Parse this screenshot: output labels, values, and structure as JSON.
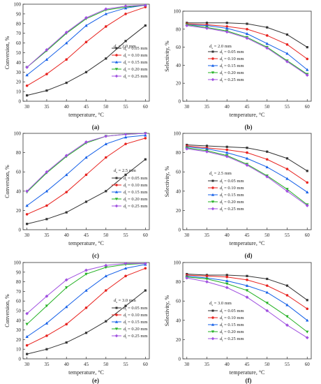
{
  "figure": {
    "panels": [
      {
        "id": "a",
        "label": "(a)",
        "d_label": "dₛ = 2.0 mm",
        "metric": "conversion"
      },
      {
        "id": "b",
        "label": "(b)",
        "d_label": "dₛ = 2.0 mm",
        "metric": "selectivity"
      },
      {
        "id": "c",
        "label": "(c)",
        "d_label": "dₛ = 2.5 mm",
        "metric": "conversion"
      },
      {
        "id": "d",
        "label": "(d)",
        "d_label": "dₛ = 2.5 mm",
        "metric": "selectivity"
      },
      {
        "id": "e",
        "label": "(e)",
        "d_label": "dₛ = 3.0 mm",
        "metric": "conversion"
      },
      {
        "id": "f",
        "label": "(f)",
        "d_label": "dₛ = 3.0 mm",
        "metric": "selectivity"
      }
    ]
  },
  "chart_data": [
    {
      "id": "a",
      "type": "line",
      "panel_label": "(a)",
      "d_label": "dₛ = 2.0 mm",
      "xlabel": "temperature, °C",
      "ylabel": "Conversion, %",
      "x": [
        30,
        35,
        40,
        45,
        50,
        55,
        60
      ],
      "xlim": [
        29,
        61
      ],
      "ylim": [
        0,
        100
      ],
      "yticks": [
        0,
        10,
        20,
        30,
        40,
        50,
        60,
        70,
        80,
        90,
        100
      ],
      "legend_position": "center-right",
      "grid": false,
      "series": [
        {
          "name": "dₗ = 0.05 mm",
          "color": "#333333",
          "marker": "square",
          "values": [
            6,
            11,
            19,
            30,
            44,
            62,
            78
          ]
        },
        {
          "name": "dₗ = 0.10 mm",
          "color": "#e8231f",
          "marker": "circle",
          "values": [
            16,
            28,
            43,
            61,
            77,
            90,
            97
          ]
        },
        {
          "name": "dₗ = 0.15 mm",
          "color": "#1560e8",
          "marker": "triangle-up",
          "values": [
            27,
            43,
            60,
            78,
            90,
            96,
            99
          ]
        },
        {
          "name": "dₗ = 0.20 mm",
          "color": "#20b020",
          "marker": "triangle-down",
          "values": [
            35,
            52,
            70,
            85,
            94,
            97,
            99
          ]
        },
        {
          "name": "dₗ = 0.25 mm",
          "color": "#a050e0",
          "marker": "diamond",
          "values": [
            35,
            53,
            71,
            86,
            95,
            98,
            99
          ]
        }
      ]
    },
    {
      "id": "b",
      "type": "line",
      "panel_label": "(b)",
      "d_label": "dₛ = 2.0 mm",
      "xlabel": "temperature, °C",
      "ylabel": "Selectivity, %",
      "x": [
        30,
        35,
        40,
        45,
        50,
        55,
        60
      ],
      "xlim": [
        29,
        61
      ],
      "ylim": [
        0,
        100
      ],
      "yticks": [
        0,
        20,
        40,
        60,
        80,
        100
      ],
      "legend_position": "bottom-center",
      "grid": false,
      "series": [
        {
          "name": "dₗ = 0.05 mm",
          "color": "#333333",
          "marker": "square",
          "values": [
            87,
            87,
            87,
            86,
            82,
            74,
            60
          ]
        },
        {
          "name": "dₗ = 0.10 mm",
          "color": "#e8231f",
          "marker": "circle",
          "values": [
            86,
            85,
            83,
            80,
            73,
            63,
            47
          ]
        },
        {
          "name": "dₗ = 0.15 mm",
          "color": "#1560e8",
          "marker": "triangle-up",
          "values": [
            85,
            84,
            81,
            75,
            64,
            53,
            35
          ]
        },
        {
          "name": "dₗ = 0.20 mm",
          "color": "#20b020",
          "marker": "triangle-down",
          "values": [
            85,
            82,
            78,
            71,
            60,
            45,
            30
          ]
        },
        {
          "name": "dₗ = 0.25 mm",
          "color": "#a050e0",
          "marker": "diamond",
          "values": [
            84,
            81,
            77,
            70,
            59,
            44,
            29
          ]
        }
      ]
    },
    {
      "id": "c",
      "type": "line",
      "panel_label": "(c)",
      "d_label": "dₛ = 2.5 mm",
      "xlabel": "temperature, °C",
      "ylabel": "Conversion, %",
      "x": [
        30,
        35,
        40,
        45,
        50,
        55,
        60
      ],
      "xlim": [
        29,
        61
      ],
      "ylim": [
        0,
        100
      ],
      "yticks": [
        0,
        20,
        40,
        60,
        80,
        100
      ],
      "legend_position": "center-right",
      "grid": false,
      "series": [
        {
          "name": "dₗ = 0.05 mm",
          "color": "#333333",
          "marker": "square",
          "values": [
            6,
            11,
            18,
            29,
            40,
            57,
            73
          ]
        },
        {
          "name": "dₗ = 0.10 mm",
          "color": "#e8231f",
          "marker": "circle",
          "values": [
            16,
            25,
            39,
            57,
            75,
            89,
            95
          ]
        },
        {
          "name": "dₗ = 0.15 mm",
          "color": "#1560e8",
          "marker": "triangle-up",
          "values": [
            25,
            40,
            57,
            75,
            89,
            96,
            98
          ]
        },
        {
          "name": "dₗ = 0.20 mm",
          "color": "#20b020",
          "marker": "triangle-down",
          "values": [
            39,
            59,
            76,
            90,
            97,
            99,
            100
          ]
        },
        {
          "name": "dₗ = 0.25 mm",
          "color": "#a050e0",
          "marker": "diamond",
          "values": [
            40,
            60,
            77,
            91,
            97,
            99,
            100
          ]
        }
      ]
    },
    {
      "id": "d",
      "type": "line",
      "panel_label": "(d)",
      "d_label": "dₛ = 2.5 mm",
      "xlabel": "temperature, °C",
      "ylabel": "Selectivity, %",
      "x": [
        30,
        35,
        40,
        45,
        50,
        55,
        60
      ],
      "xlim": [
        29,
        61
      ],
      "ylim": [
        0,
        100
      ],
      "yticks": [
        0,
        20,
        40,
        60,
        80,
        100
      ],
      "legend_position": "bottom-center",
      "grid": false,
      "series": [
        {
          "name": "dₗ = 0.05 mm",
          "color": "#333333",
          "marker": "square",
          "values": [
            88,
            87,
            86,
            85,
            81,
            74,
            61
          ]
        },
        {
          "name": "dₗ = 0.10 mm",
          "color": "#e8231f",
          "marker": "circle",
          "values": [
            87,
            85,
            83,
            80,
            73,
            63,
            49
          ]
        },
        {
          "name": "dₗ = 0.15 mm",
          "color": "#1560e8",
          "marker": "triangle-up",
          "values": [
            86,
            84,
            80,
            74,
            65,
            53,
            39
          ]
        },
        {
          "name": "dₗ = 0.20 mm",
          "color": "#20b020",
          "marker": "triangle-down",
          "values": [
            85,
            82,
            77,
            68,
            56,
            42,
            26
          ]
        },
        {
          "name": "dₗ = 0.25 mm",
          "color": "#a050e0",
          "marker": "diamond",
          "values": [
            84,
            81,
            76,
            67,
            55,
            40,
            25
          ]
        }
      ]
    },
    {
      "id": "e",
      "type": "line",
      "panel_label": "(e)",
      "d_label": "dₛ = 3.0 mm",
      "xlabel": "temperature, °C",
      "ylabel": "Conversion, %",
      "x": [
        30,
        35,
        40,
        45,
        50,
        55,
        60
      ],
      "xlim": [
        29,
        61
      ],
      "ylim": [
        0,
        100
      ],
      "yticks": [
        0,
        10,
        20,
        30,
        40,
        50,
        60,
        70,
        80,
        90,
        100
      ],
      "legend_position": "center-right",
      "grid": false,
      "series": [
        {
          "name": "dₗ = 0.05 mm",
          "color": "#333333",
          "marker": "square",
          "values": [
            5,
            10,
            17,
            27,
            39,
            55,
            71
          ]
        },
        {
          "name": "dₗ = 0.10 mm",
          "color": "#e8231f",
          "marker": "circle",
          "values": [
            14,
            24,
            36,
            53,
            71,
            86,
            94
          ]
        },
        {
          "name": "dₗ = 0.15 mm",
          "color": "#1560e8",
          "marker": "triangle-up",
          "values": [
            23,
            37,
            54,
            71,
            86,
            94,
            98
          ]
        },
        {
          "name": "dₗ = 0.20 mm",
          "color": "#20b020",
          "marker": "triangle-down",
          "values": [
            36,
            55,
            74,
            88,
            95,
            98,
            99
          ]
        },
        {
          "name": "dₗ = 0.25 mm",
          "color": "#a050e0",
          "marker": "diamond",
          "values": [
            47,
            65,
            82,
            92,
            97,
            99,
            99
          ]
        }
      ]
    },
    {
      "id": "f",
      "type": "line",
      "panel_label": "(f)",
      "d_label": "dₛ = 3.0 mm",
      "xlabel": "temperature, °C",
      "ylabel": "Selectivity, %",
      "x": [
        30,
        35,
        40,
        45,
        50,
        55,
        60
      ],
      "xlim": [
        29,
        61
      ],
      "ylim": [
        0,
        100
      ],
      "yticks": [
        0,
        20,
        40,
        60,
        80,
        100
      ],
      "legend_position": "bottom-center",
      "grid": false,
      "series": [
        {
          "name": "dₗ = 0.05 mm",
          "color": "#333333",
          "marker": "square",
          "values": [
            88,
            87,
            87,
            86,
            83,
            76,
            61
          ]
        },
        {
          "name": "dₗ = 0.10 mm",
          "color": "#e8231f",
          "marker": "circle",
          "values": [
            87,
            86,
            85,
            82,
            76,
            66,
            52
          ]
        },
        {
          "name": "dₗ = 0.15 mm",
          "color": "#1560e8",
          "marker": "triangle-up",
          "values": [
            86,
            84,
            81,
            76,
            69,
            56,
            40
          ]
        },
        {
          "name": "dₗ = 0.20 mm",
          "color": "#20b020",
          "marker": "triangle-down",
          "values": [
            85,
            83,
            78,
            71,
            58,
            44,
            28
          ]
        },
        {
          "name": "dₗ = 0.25 mm",
          "color": "#a050e0",
          "marker": "diamond",
          "values": [
            84,
            80,
            74,
            64,
            50,
            35,
            22
          ]
        }
      ]
    }
  ]
}
